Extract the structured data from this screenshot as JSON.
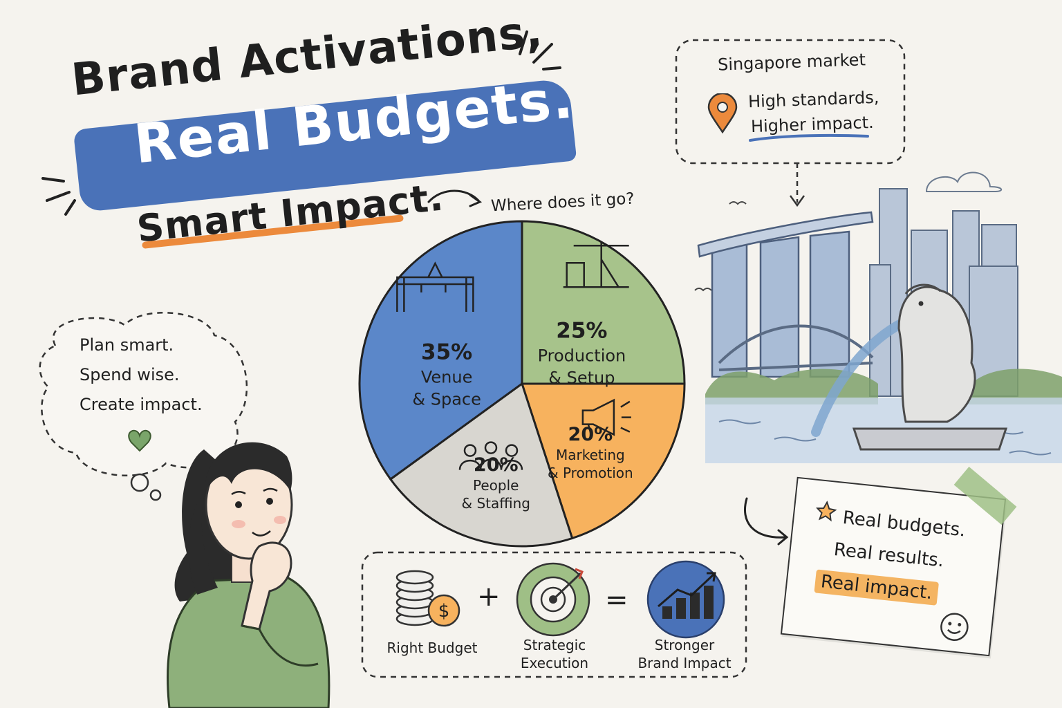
{
  "title": {
    "line1": "Brand Activations,",
    "line2": "Real Budgets.",
    "line3": "Smart Impact."
  },
  "thought": {
    "lines": [
      "Plan smart.",
      "Spend wise.",
      "Create impact."
    ]
  },
  "callout": {
    "heading": "Singapore market",
    "line1": "High standards,",
    "line2": "Higher impact."
  },
  "pie_prompt": "Where does it go?",
  "chart_data": {
    "type": "pie",
    "title": "",
    "slices": [
      {
        "label_line1": "Venue",
        "label_line2": "& Space",
        "value": 35,
        "value_text": "35%",
        "color": "#5b87c9",
        "icon": "stage-truss-icon"
      },
      {
        "label_line1": "Production",
        "label_line2": "& Setup",
        "value": 25,
        "value_text": "25%",
        "color": "#a7c38b",
        "icon": "lights-speaker-icon"
      },
      {
        "label_line1": "Marketing",
        "label_line2": "& Promotion",
        "value": 20,
        "value_text": "20%",
        "color": "#f7b25e",
        "icon": "megaphone-icon"
      },
      {
        "label_line1": "People",
        "label_line2": "& Staffing",
        "value": 20,
        "value_text": "20%",
        "color": "#d8d6d0",
        "icon": "people-group-icon"
      }
    ]
  },
  "formula": {
    "item1": "Right Budget",
    "plus": "+",
    "item2_line1": "Strategic",
    "item2_line2": "Execution",
    "equals": "=",
    "item3_line1": "Stronger",
    "item3_line2": "Brand Impact"
  },
  "note": {
    "line1": "Real budgets.",
    "line2": "Real results.",
    "line3": "Real impact."
  },
  "colors": {
    "accent_blue": "#4a72b8",
    "accent_orange": "#ec8a3c",
    "accent_green": "#7aa56a",
    "background": "#f5f3ee"
  }
}
